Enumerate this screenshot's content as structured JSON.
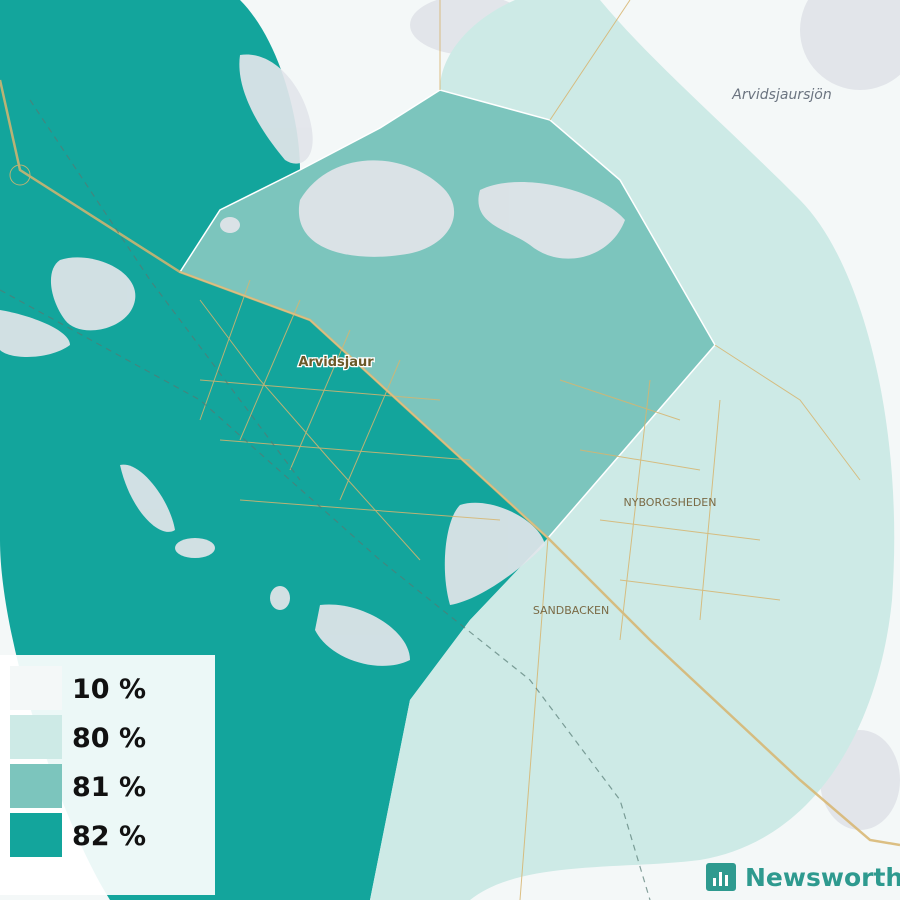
{
  "map": {
    "places": [
      {
        "label": "Arvidsjaursjön"
      },
      {
        "label": "Arvidsjaur"
      },
      {
        "label": "NYBORGSHEDEN"
      },
      {
        "label": "SANDBACKEN"
      }
    ],
    "legend": [
      {
        "label": "10 %",
        "color": "#f4f8f8"
      },
      {
        "label": "80 %",
        "color": "#cdeae6"
      },
      {
        "label": "81 %",
        "color": "#7cc5bd"
      },
      {
        "label": "82 %",
        "color": "#13a59c"
      }
    ],
    "brand": "Newsworthy"
  }
}
